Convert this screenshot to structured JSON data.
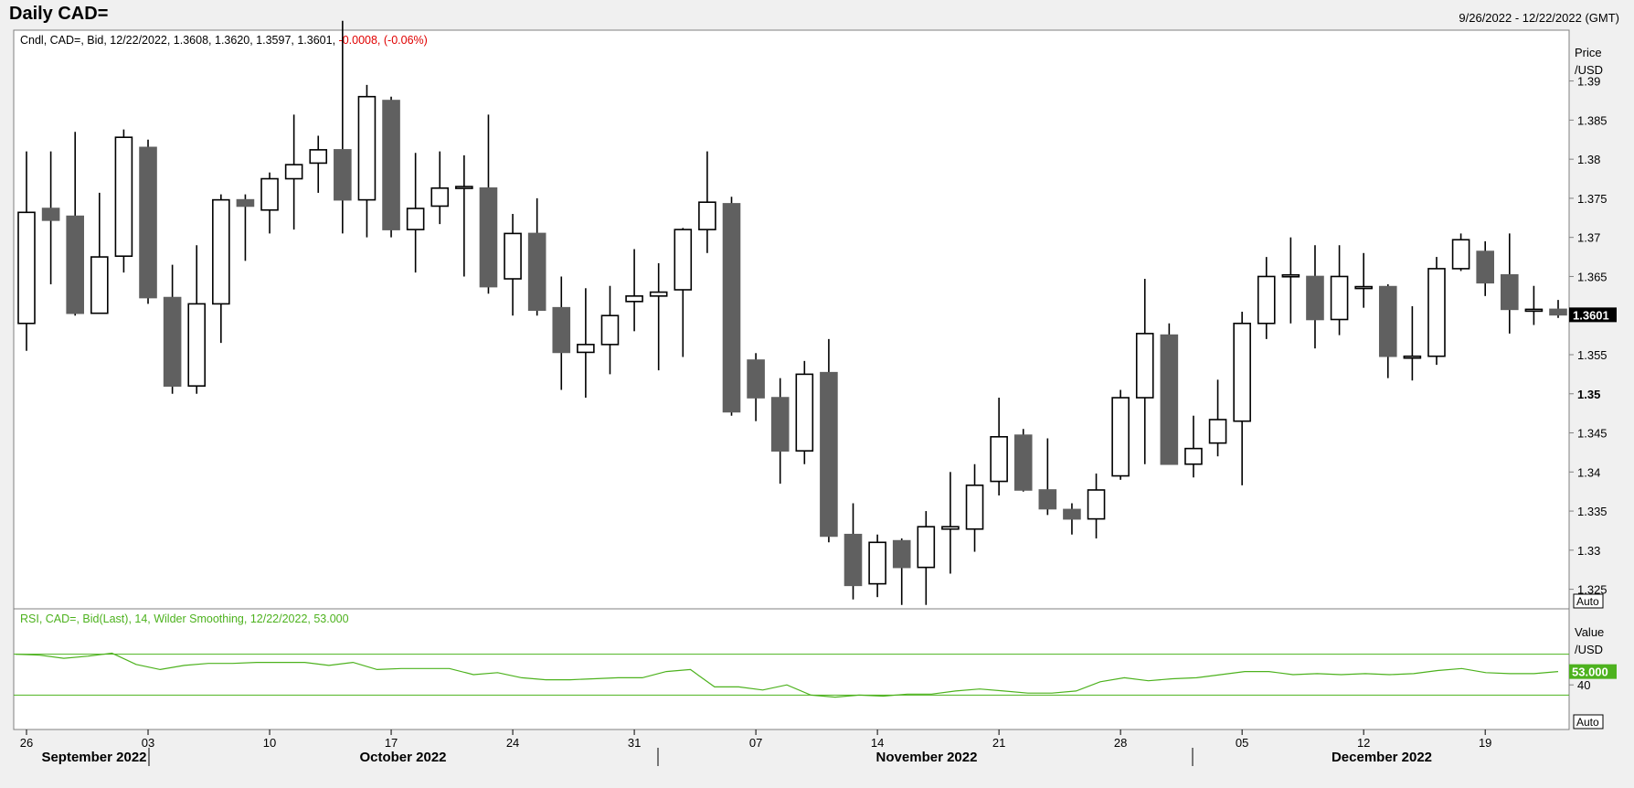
{
  "header": {
    "title": "Daily CAD=",
    "date_range": "9/26/2022 - 12/22/2022 (GMT)"
  },
  "price_panel": {
    "legend_prefix": "Cndl, CAD=, Bid, 12/22/2022, 1.3608, 1.3620, 1.3597, 1.3601, ",
    "legend_change": "-0.0008, (-0.06%)",
    "axis_label_1": "Price",
    "axis_label_2": "/USD",
    "last_value": "1.3601",
    "auto_label": "Auto",
    "colors": {
      "bull_fill": "#ffffff",
      "bear_fill": "#606060",
      "change": "#e00000"
    }
  },
  "rsi_panel": {
    "legend": "RSI, CAD=, Bid(Last),  14, Wilder Smoothing, 12/22/2022, 53.000",
    "axis_label_1": "Value",
    "axis_label_2": "/USD",
    "last_value": "53.000",
    "auto_label": "Auto",
    "color": "#4db21e"
  },
  "x_axis": {
    "day_labels": [
      "26",
      "03",
      "10",
      "17",
      "24",
      "31",
      "07",
      "14",
      "21",
      "28",
      "05",
      "12",
      "19"
    ],
    "month_labels": [
      "September 2022",
      "October 2022",
      "November 2022",
      "December 2022"
    ]
  },
  "chart_data": [
    {
      "type": "candlestick",
      "title": "Daily CAD=",
      "ylabel": "Price /USD",
      "ylim": [
        1.3225,
        1.3965
      ],
      "yticks": [
        "1.325",
        "1.33",
        "1.335",
        "1.34",
        "1.345",
        "1.35",
        "1.355",
        "1.36",
        "1.365",
        "1.37",
        "1.375",
        "1.38",
        "1.385",
        "1.39"
      ],
      "bold_tick": "1.35",
      "candles": [
        {
          "date": "2022-09-26",
          "o": 1.359,
          "h": 1.381,
          "l": 1.3555,
          "c": 1.3732
        },
        {
          "date": "2022-09-27",
          "o": 1.3737,
          "h": 1.381,
          "l": 1.364,
          "c": 1.3722
        },
        {
          "date": "2022-09-28",
          "o": 1.3727,
          "h": 1.3835,
          "l": 1.36,
          "c": 1.3603
        },
        {
          "date": "2022-09-29",
          "o": 1.3603,
          "h": 1.3757,
          "l": 1.3603,
          "c": 1.3675
        },
        {
          "date": "2022-09-30",
          "o": 1.3676,
          "h": 1.3838,
          "l": 1.3655,
          "c": 1.3828
        },
        {
          "date": "2022-10-03",
          "o": 1.3815,
          "h": 1.3825,
          "l": 1.3615,
          "c": 1.3623
        },
        {
          "date": "2022-10-04",
          "o": 1.3623,
          "h": 1.3665,
          "l": 1.35,
          "c": 1.351
        },
        {
          "date": "2022-10-05",
          "o": 1.351,
          "h": 1.369,
          "l": 1.35,
          "c": 1.3615
        },
        {
          "date": "2022-10-06",
          "o": 1.3615,
          "h": 1.3755,
          "l": 1.3565,
          "c": 1.3748
        },
        {
          "date": "2022-10-07",
          "o": 1.3748,
          "h": 1.3755,
          "l": 1.367,
          "c": 1.374
        },
        {
          "date": "2022-10-10",
          "o": 1.3735,
          "h": 1.3783,
          "l": 1.3705,
          "c": 1.3775
        },
        {
          "date": "2022-10-11",
          "o": 1.3775,
          "h": 1.3857,
          "l": 1.371,
          "c": 1.3793
        },
        {
          "date": "2022-10-12",
          "o": 1.3795,
          "h": 1.383,
          "l": 1.3757,
          "c": 1.3812
        },
        {
          "date": "2022-10-13",
          "o": 1.3812,
          "h": 1.3977,
          "l": 1.3705,
          "c": 1.3748
        },
        {
          "date": "2022-10-14",
          "o": 1.3748,
          "h": 1.3895,
          "l": 1.37,
          "c": 1.388
        },
        {
          "date": "2022-10-17",
          "o": 1.3875,
          "h": 1.388,
          "l": 1.37,
          "c": 1.371
        },
        {
          "date": "2022-10-18",
          "o": 1.371,
          "h": 1.3808,
          "l": 1.3655,
          "c": 1.3737
        },
        {
          "date": "2022-10-19",
          "o": 1.374,
          "h": 1.381,
          "l": 1.3717,
          "c": 1.3763
        },
        {
          "date": "2022-10-20",
          "o": 1.3765,
          "h": 1.3805,
          "l": 1.365,
          "c": 1.3765
        },
        {
          "date": "2022-10-21",
          "o": 1.3763,
          "h": 1.3857,
          "l": 1.3628,
          "c": 1.3637
        },
        {
          "date": "2022-10-24",
          "o": 1.3647,
          "h": 1.373,
          "l": 1.36,
          "c": 1.3705
        },
        {
          "date": "2022-10-25",
          "o": 1.3705,
          "h": 1.375,
          "l": 1.36,
          "c": 1.3607
        },
        {
          "date": "2022-10-26",
          "o": 1.361,
          "h": 1.365,
          "l": 1.3505,
          "c": 1.3553
        },
        {
          "date": "2022-10-27",
          "o": 1.3553,
          "h": 1.3635,
          "l": 1.3495,
          "c": 1.3563
        },
        {
          "date": "2022-10-28",
          "o": 1.3563,
          "h": 1.3638,
          "l": 1.3525,
          "c": 1.36
        },
        {
          "date": "2022-10-31",
          "o": 1.3618,
          "h": 1.3685,
          "l": 1.358,
          "c": 1.3625
        },
        {
          "date": "2022-11-01",
          "o": 1.3625,
          "h": 1.3667,
          "l": 1.353,
          "c": 1.363
        },
        {
          "date": "2022-11-02",
          "o": 1.3633,
          "h": 1.3712,
          "l": 1.3547,
          "c": 1.371
        },
        {
          "date": "2022-11-03",
          "o": 1.371,
          "h": 1.381,
          "l": 1.368,
          "c": 1.3745
        },
        {
          "date": "2022-11-04",
          "o": 1.3743,
          "h": 1.3752,
          "l": 1.3472,
          "c": 1.3477
        },
        {
          "date": "2022-11-07",
          "o": 1.3543,
          "h": 1.3552,
          "l": 1.3465,
          "c": 1.3495
        },
        {
          "date": "2022-11-08",
          "o": 1.3495,
          "h": 1.352,
          "l": 1.3385,
          "c": 1.3427
        },
        {
          "date": "2022-11-09",
          "o": 1.3427,
          "h": 1.3542,
          "l": 1.341,
          "c": 1.3525
        },
        {
          "date": "2022-11-10",
          "o": 1.3527,
          "h": 1.357,
          "l": 1.331,
          "c": 1.3318
        },
        {
          "date": "2022-11-11",
          "o": 1.332,
          "h": 1.336,
          "l": 1.3237,
          "c": 1.3255
        },
        {
          "date": "2022-11-14",
          "o": 1.3257,
          "h": 1.332,
          "l": 1.324,
          "c": 1.331
        },
        {
          "date": "2022-11-15",
          "o": 1.3312,
          "h": 1.3315,
          "l": 1.323,
          "c": 1.3278
        },
        {
          "date": "2022-11-16",
          "o": 1.3278,
          "h": 1.335,
          "l": 1.323,
          "c": 1.333
        },
        {
          "date": "2022-11-17",
          "o": 1.3327,
          "h": 1.34,
          "l": 1.327,
          "c": 1.333
        },
        {
          "date": "2022-11-18",
          "o": 1.3327,
          "h": 1.341,
          "l": 1.3298,
          "c": 1.3383
        },
        {
          "date": "2022-11-21",
          "o": 1.3388,
          "h": 1.3495,
          "l": 1.337,
          "c": 1.3445
        },
        {
          "date": "2022-11-22",
          "o": 1.3447,
          "h": 1.3455,
          "l": 1.3375,
          "c": 1.3377
        },
        {
          "date": "2022-11-23",
          "o": 1.3377,
          "h": 1.3443,
          "l": 1.3345,
          "c": 1.3353
        },
        {
          "date": "2022-11-24",
          "o": 1.3352,
          "h": 1.336,
          "l": 1.332,
          "c": 1.334
        },
        {
          "date": "2022-11-25",
          "o": 1.334,
          "h": 1.3398,
          "l": 1.3315,
          "c": 1.3377
        },
        {
          "date": "2022-11-28",
          "o": 1.3395,
          "h": 1.3505,
          "l": 1.339,
          "c": 1.3495
        },
        {
          "date": "2022-11-29",
          "o": 1.3495,
          "h": 1.3647,
          "l": 1.341,
          "c": 1.3577
        },
        {
          "date": "2022-11-30",
          "o": 1.3575,
          "h": 1.359,
          "l": 1.341,
          "c": 1.341
        },
        {
          "date": "2022-12-01",
          "o": 1.341,
          "h": 1.3472,
          "l": 1.3393,
          "c": 1.343
        },
        {
          "date": "2022-12-02",
          "o": 1.3437,
          "h": 1.3518,
          "l": 1.342,
          "c": 1.3467
        },
        {
          "date": "2022-12-05",
          "o": 1.3465,
          "h": 1.3605,
          "l": 1.3383,
          "c": 1.359
        },
        {
          "date": "2022-12-06",
          "o": 1.359,
          "h": 1.3675,
          "l": 1.357,
          "c": 1.365
        },
        {
          "date": "2022-12-07",
          "o": 1.3652,
          "h": 1.37,
          "l": 1.359,
          "c": 1.3652
        },
        {
          "date": "2022-12-08",
          "o": 1.365,
          "h": 1.369,
          "l": 1.3558,
          "c": 1.3595
        },
        {
          "date": "2022-12-09",
          "o": 1.3595,
          "h": 1.369,
          "l": 1.3575,
          "c": 1.365
        },
        {
          "date": "2022-12-12",
          "o": 1.3637,
          "h": 1.368,
          "l": 1.361,
          "c": 1.3637
        },
        {
          "date": "2022-12-13",
          "o": 1.3637,
          "h": 1.364,
          "l": 1.352,
          "c": 1.3548
        },
        {
          "date": "2022-12-14",
          "o": 1.3548,
          "h": 1.3612,
          "l": 1.3517,
          "c": 1.3548
        },
        {
          "date": "2022-12-15",
          "o": 1.3548,
          "h": 1.3675,
          "l": 1.3537,
          "c": 1.366
        },
        {
          "date": "2022-12-16",
          "o": 1.366,
          "h": 1.3705,
          "l": 1.3657,
          "c": 1.3697
        },
        {
          "date": "2022-12-19",
          "o": 1.3682,
          "h": 1.3695,
          "l": 1.3625,
          "c": 1.3642
        },
        {
          "date": "2022-12-20",
          "o": 1.3652,
          "h": 1.3705,
          "l": 1.3577,
          "c": 1.3608
        },
        {
          "date": "2022-12-21",
          "o": 1.3608,
          "h": 1.3638,
          "l": 1.3588,
          "c": 1.3608
        },
        {
          "date": "2022-12-22",
          "o": 1.3608,
          "h": 1.362,
          "l": 1.3597,
          "c": 1.3601
        }
      ]
    },
    {
      "type": "line",
      "title": "RSI, CAD=, Bid(Last),  14, Wilder Smoothing, 12/22/2022, 53.000",
      "ylabel": "Value /USD",
      "ylim": [
        0,
        100
      ],
      "yticks": [
        "40"
      ],
      "bands": [
        70,
        30
      ],
      "series": [
        {
          "values": [
            70,
            69,
            66,
            68,
            71,
            60,
            55,
            59,
            61,
            61,
            62,
            62,
            62,
            59,
            62,
            55,
            56,
            56,
            56,
            50,
            52,
            47,
            45,
            45,
            46,
            47,
            47,
            53,
            55,
            38,
            38,
            35,
            40,
            30,
            28,
            30,
            29,
            31,
            31,
            34,
            36,
            34,
            32,
            32,
            34,
            43,
            47,
            44,
            46,
            47,
            50,
            53,
            53,
            50,
            51,
            50,
            51,
            50,
            51,
            54,
            56,
            52,
            51,
            51,
            53
          ]
        }
      ]
    }
  ]
}
